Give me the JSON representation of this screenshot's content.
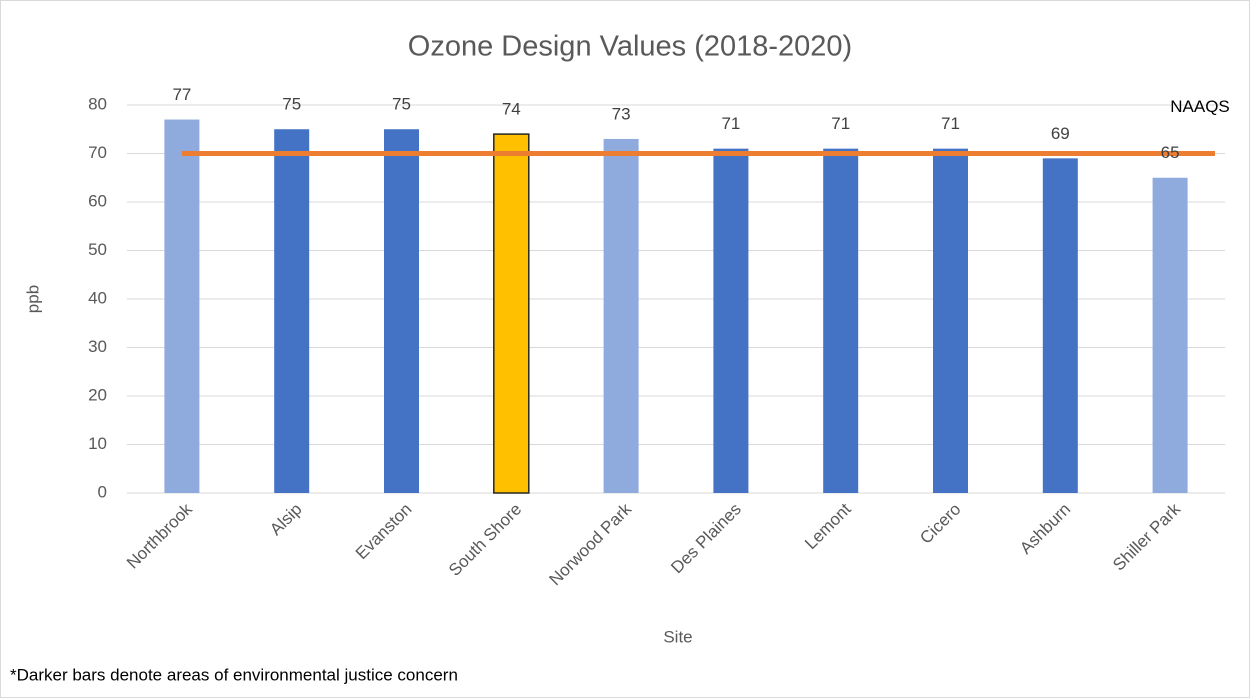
{
  "chart_data": {
    "type": "bar",
    "title": "Ozone Design Values (2018-2020)",
    "x_label": "Site",
    "y_label": "ppb",
    "categories": [
      "Northbrook",
      "Alsip",
      "Evanston",
      "South Shore",
      "Norwood Park",
      "Des Plaines",
      "Lemont",
      "Cicero",
      "Ashburn",
      "Shiller Park"
    ],
    "values": [
      77,
      75,
      75,
      74,
      73,
      71,
      71,
      71,
      69,
      65
    ],
    "colors": [
      "#8faadc",
      "#4472c4",
      "#4472c4",
      "#ffc000",
      "#8faadc",
      "#4472c4",
      "#4472c4",
      "#4472c4",
      "#4472c4",
      "#8faadc"
    ],
    "edgecolors": [
      null,
      null,
      null,
      "#262626",
      null,
      null,
      null,
      null,
      null,
      null
    ],
    "ylim": [
      0,
      80
    ],
    "yticks": [
      0,
      10,
      20,
      30,
      40,
      50,
      60,
      70,
      80
    ],
    "grid": true,
    "reference_line": {
      "label": "NAAQS",
      "value": 70,
      "color": "#ed7d31"
    },
    "footnote": "*Darker bars denote areas of environmental justice concern"
  }
}
